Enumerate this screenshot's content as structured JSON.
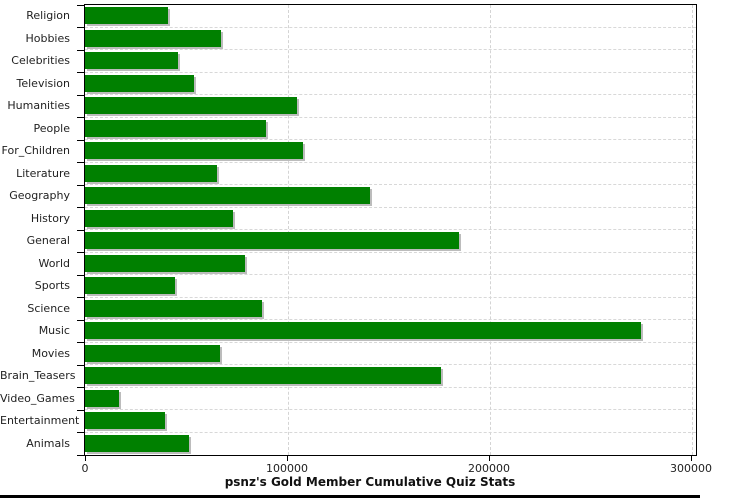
{
  "chart_data": {
    "type": "bar",
    "orientation": "horizontal",
    "title": "psnz's Gold Member Cumulative Quiz Stats",
    "categories": [
      "Religion",
      "Hobbies",
      "Celebrities",
      "Television",
      "Humanities",
      "People",
      "For_Children",
      "Literature",
      "Geography",
      "History",
      "General",
      "World",
      "Sports",
      "Science",
      "Music",
      "Movies",
      "Brain_Teasers",
      "Video_Games",
      "Entertainment",
      "Animals"
    ],
    "values": [
      41000,
      67500,
      46000,
      54000,
      105000,
      89500,
      108000,
      65500,
      141000,
      73500,
      185000,
      79000,
      44500,
      87500,
      275000,
      67000,
      176000,
      17000,
      39500,
      51500
    ],
    "xlabel": "",
    "ylabel": "",
    "xlim": [
      0,
      300000
    ],
    "x_ticks": [
      0,
      100000,
      200000,
      300000
    ],
    "x_tick_labels": [
      "0",
      "100000",
      "200000",
      "300000"
    ],
    "grid": "dashed major gridlines, horizontal between every category and vertical at each x tick",
    "legend_position": "none",
    "bar_color": "#008000"
  },
  "colors": {
    "bar": "#008000",
    "bar_shadow": "#bcbcbc",
    "gridline": "#d4d4d4",
    "axis": "#000000",
    "label_text": "#1f1f1f",
    "background": "#ffffff"
  }
}
